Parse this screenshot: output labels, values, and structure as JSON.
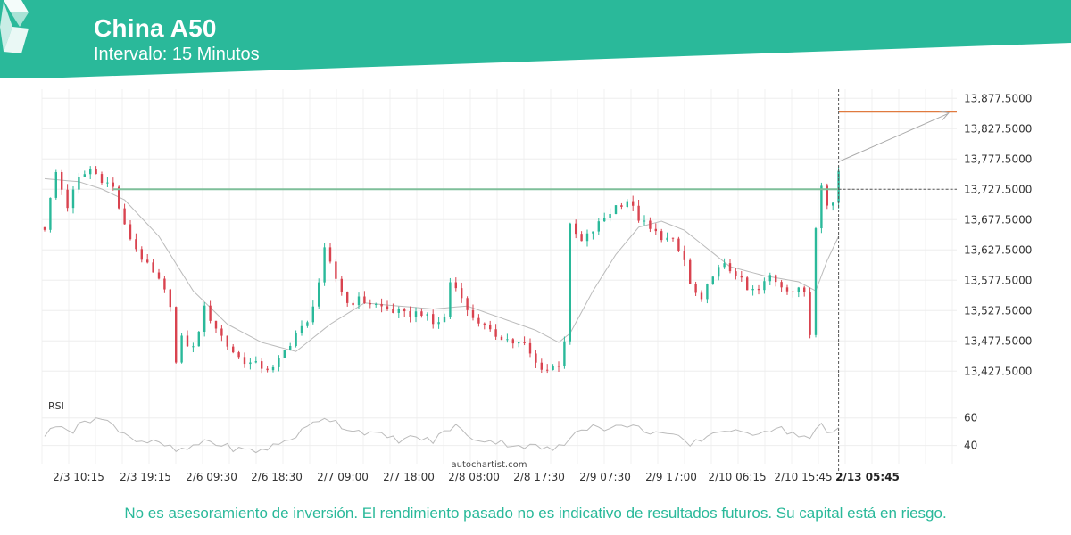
{
  "header": {
    "title": "China A50",
    "subtitle": "Intervalo: 15 Minutos",
    "bar_color": "#2ab99a"
  },
  "watermark": "autochartist.com",
  "rsi_label": "RSI",
  "disclaimer": "No es asesoramiento de inversión. El rendimiento pasado no es indicativo de resultados futuros. Su capital está en riesgo.",
  "chart_data": {
    "type": "candlestick",
    "title": "China A50",
    "ylim": [
      13400,
      13900
    ],
    "y_ticks": [
      "13,877.5000",
      "13,827.5000",
      "13,777.5000",
      "13,727.5000",
      "13,677.5000",
      "13,627.5000",
      "13,577.5000",
      "13,527.5000",
      "13,477.5000",
      "13,427.5000"
    ],
    "y_tick_values": [
      13877.5,
      13827.5,
      13777.5,
      13727.5,
      13677.5,
      13627.5,
      13577.5,
      13527.5,
      13477.5,
      13427.5
    ],
    "x_tick_labels": [
      "2/3 10:15",
      "2/3 19:15",
      "2/6 09:30",
      "2/6 18:30",
      "2/7 09:00",
      "2/7 18:00",
      "2/8 08:00",
      "2/8 17:30",
      "2/9 07:30",
      "2/9 17:00",
      "2/10 06:15",
      "2/10 15:45",
      "2/13 05:45"
    ],
    "current_time_label": "2/13 05:45",
    "resistance_level": 13727.5,
    "target_level": 13855,
    "grid": true,
    "colors": {
      "up": "#2ab99a",
      "down": "#d9434f",
      "resistance": "#7fbf9a",
      "target": "#e07a3f",
      "ma": "#bbbbbb"
    },
    "rsi": {
      "ylim": [
        30,
        70
      ],
      "ticks": [
        "60",
        "40"
      ],
      "tick_values": [
        60,
        40
      ]
    },
    "price_path": [
      [
        0,
        13665
      ],
      [
        2,
        13755
      ],
      [
        4,
        13700
      ],
      [
        6,
        13745
      ],
      [
        8,
        13760
      ],
      [
        10,
        13745
      ],
      [
        12,
        13730
      ],
      [
        14,
        13665
      ],
      [
        16,
        13630
      ],
      [
        18,
        13600
      ],
      [
        20,
        13575
      ],
      [
        22,
        13540
      ],
      [
        23,
        13440
      ],
      [
        24,
        13480
      ],
      [
        26,
        13465
      ],
      [
        28,
        13530
      ],
      [
        30,
        13500
      ],
      [
        32,
        13470
      ],
      [
        34,
        13450
      ],
      [
        36,
        13440
      ],
      [
        38,
        13435
      ],
      [
        40,
        13430
      ],
      [
        42,
        13460
      ],
      [
        44,
        13490
      ],
      [
        46,
        13505
      ],
      [
        48,
        13575
      ],
      [
        49,
        13625
      ],
      [
        51,
        13580
      ],
      [
        53,
        13540
      ],
      [
        55,
        13545
      ],
      [
        57,
        13540
      ],
      [
        60,
        13530
      ],
      [
        63,
        13520
      ],
      [
        66,
        13525
      ],
      [
        68,
        13505
      ],
      [
        70,
        13515
      ],
      [
        71,
        13575
      ],
      [
        73,
        13555
      ],
      [
        74,
        13525
      ],
      [
        76,
        13510
      ],
      [
        78,
        13490
      ],
      [
        80,
        13485
      ],
      [
        82,
        13475
      ],
      [
        84,
        13470
      ],
      [
        86,
        13440
      ],
      [
        88,
        13430
      ],
      [
        90,
        13440
      ],
      [
        91,
        13480
      ],
      [
        92,
        13665
      ],
      [
        94,
        13640
      ],
      [
        96,
        13660
      ],
      [
        98,
        13680
      ],
      [
        100,
        13700
      ],
      [
        102,
        13710
      ],
      [
        104,
        13680
      ],
      [
        106,
        13660
      ],
      [
        108,
        13650
      ],
      [
        110,
        13640
      ],
      [
        112,
        13610
      ],
      [
        113,
        13570
      ],
      [
        115,
        13540
      ],
      [
        117,
        13590
      ],
      [
        119,
        13600
      ],
      [
        121,
        13590
      ],
      [
        123,
        13560
      ],
      [
        125,
        13560
      ],
      [
        127,
        13585
      ],
      [
        129,
        13570
      ],
      [
        131,
        13560
      ],
      [
        133,
        13560
      ],
      [
        134,
        13490
      ],
      [
        135,
        13670
      ],
      [
        136,
        13740
      ],
      [
        137,
        13700
      ],
      [
        138,
        13705
      ],
      [
        139,
        13760
      ]
    ],
    "ma_path": [
      [
        0,
        13745
      ],
      [
        6,
        13740
      ],
      [
        10,
        13728
      ],
      [
        14,
        13710
      ],
      [
        20,
        13650
      ],
      [
        26,
        13560
      ],
      [
        32,
        13505
      ],
      [
        38,
        13475
      ],
      [
        44,
        13460
      ],
      [
        50,
        13505
      ],
      [
        56,
        13540
      ],
      [
        62,
        13535
      ],
      [
        68,
        13530
      ],
      [
        74,
        13535
      ],
      [
        80,
        13515
      ],
      [
        86,
        13495
      ],
      [
        90,
        13475
      ],
      [
        92,
        13490
      ],
      [
        96,
        13560
      ],
      [
        100,
        13620
      ],
      [
        104,
        13665
      ],
      [
        108,
        13675
      ],
      [
        112,
        13660
      ],
      [
        116,
        13630
      ],
      [
        120,
        13600
      ],
      [
        126,
        13585
      ],
      [
        132,
        13575
      ],
      [
        135,
        13560
      ],
      [
        137,
        13610
      ],
      [
        139,
        13650
      ]
    ],
    "rsi_path": [
      [
        0,
        48
      ],
      [
        3,
        56
      ],
      [
        5,
        50
      ],
      [
        7,
        58
      ],
      [
        9,
        60
      ],
      [
        11,
        57
      ],
      [
        13,
        52
      ],
      [
        16,
        44
      ],
      [
        19,
        42
      ],
      [
        21,
        40
      ],
      [
        23,
        36
      ],
      [
        26,
        38
      ],
      [
        28,
        44
      ],
      [
        31,
        40
      ],
      [
        34,
        37
      ],
      [
        37,
        36
      ],
      [
        39,
        38
      ],
      [
        41,
        41
      ],
      [
        43,
        45
      ],
      [
        45,
        50
      ],
      [
        47,
        56
      ],
      [
        49,
        61
      ],
      [
        51,
        57
      ],
      [
        53,
        52
      ],
      [
        56,
        50
      ],
      [
        59,
        47
      ],
      [
        62,
        44
      ],
      [
        65,
        46
      ],
      [
        68,
        43
      ],
      [
        70,
        50
      ],
      [
        72,
        55
      ],
      [
        74,
        46
      ],
      [
        77,
        44
      ],
      [
        80,
        42
      ],
      [
        83,
        40
      ],
      [
        86,
        39
      ],
      [
        89,
        37
      ],
      [
        91,
        40
      ],
      [
        93,
        52
      ],
      [
        96,
        54
      ],
      [
        99,
        52
      ],
      [
        102,
        55
      ],
      [
        105,
        51
      ],
      [
        108,
        49
      ],
      [
        111,
        45
      ],
      [
        113,
        40
      ],
      [
        116,
        47
      ],
      [
        119,
        52
      ],
      [
        122,
        48
      ],
      [
        125,
        50
      ],
      [
        128,
        53
      ],
      [
        131,
        49
      ],
      [
        134,
        45
      ],
      [
        136,
        55
      ],
      [
        137,
        48
      ],
      [
        139,
        52
      ]
    ]
  }
}
